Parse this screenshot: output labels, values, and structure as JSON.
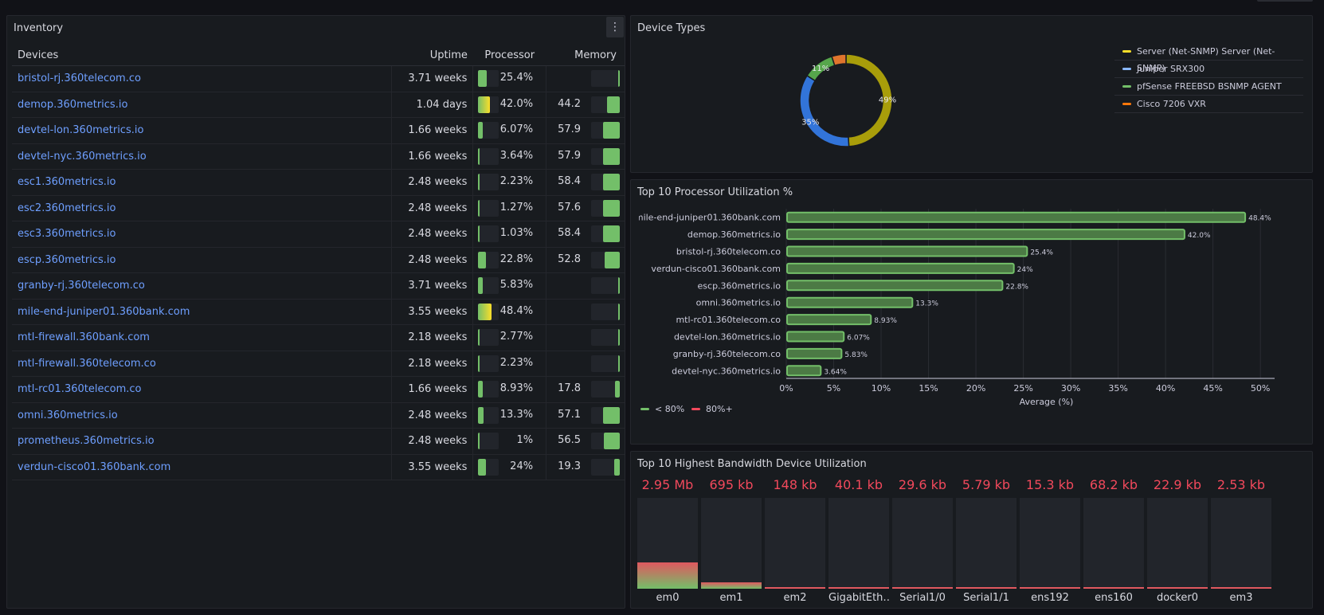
{
  "inventory": {
    "title": "Inventory",
    "menu_glyph": "⋮",
    "columns": {
      "devices": "Devices",
      "uptime": "Uptime",
      "processor": "Processor",
      "memory": "Memory"
    },
    "rows": [
      {
        "device": "bristol-rj.360telecom.co",
        "uptime": "3.71 weeks",
        "processor": "25.4%",
        "proc_pct": 25.4,
        "memory": "",
        "mem_pct": 4
      },
      {
        "device": "demop.360metrics.io",
        "uptime": "1.04 days",
        "processor": "42.0%",
        "proc_pct": 42.0,
        "memory": "44.2",
        "mem_pct": 44.2
      },
      {
        "device": "devtel-lon.360metrics.io",
        "uptime": "1.66 weeks",
        "processor": "6.07%",
        "proc_pct": 6.07,
        "memory": "57.9",
        "mem_pct": 57.9
      },
      {
        "device": "devtel-nyc.360metrics.io",
        "uptime": "1.66 weeks",
        "processor": "3.64%",
        "proc_pct": 3.64,
        "memory": "57.9",
        "mem_pct": 57.9
      },
      {
        "device": "esc1.360metrics.io",
        "uptime": "2.48 weeks",
        "processor": "2.23%",
        "proc_pct": 2.23,
        "memory": "58.4",
        "mem_pct": 58.4
      },
      {
        "device": "esc2.360metrics.io",
        "uptime": "2.48 weeks",
        "processor": "1.27%",
        "proc_pct": 1.27,
        "memory": "57.6",
        "mem_pct": 57.6
      },
      {
        "device": "esc3.360metrics.io",
        "uptime": "2.48 weeks",
        "processor": "1.03%",
        "proc_pct": 1.03,
        "memory": "58.4",
        "mem_pct": 58.4
      },
      {
        "device": "escp.360metrics.io",
        "uptime": "2.48 weeks",
        "processor": "22.8%",
        "proc_pct": 22.8,
        "memory": "52.8",
        "mem_pct": 52.8
      },
      {
        "device": "granby-rj.360telecom.co",
        "uptime": "3.71 weeks",
        "processor": "5.83%",
        "proc_pct": 5.83,
        "memory": "",
        "mem_pct": 4
      },
      {
        "device": "mile-end-juniper01.360bank.com",
        "uptime": "3.55 weeks",
        "processor": "48.4%",
        "proc_pct": 48.4,
        "memory": "",
        "mem_pct": 4
      },
      {
        "device": "mtl-firewall.360bank.com",
        "uptime": "2.18 weeks",
        "processor": "2.77%",
        "proc_pct": 2.77,
        "memory": "",
        "mem_pct": 4
      },
      {
        "device": "mtl-firewall.360telecom.co",
        "uptime": "2.18 weeks",
        "processor": "2.23%",
        "proc_pct": 2.23,
        "memory": "",
        "mem_pct": 4
      },
      {
        "device": "mtl-rc01.360telecom.co",
        "uptime": "1.66 weeks",
        "processor": "8.93%",
        "proc_pct": 8.93,
        "memory": "17.8",
        "mem_pct": 17.8
      },
      {
        "device": "omni.360metrics.io",
        "uptime": "2.48 weeks",
        "processor": "13.3%",
        "proc_pct": 13.3,
        "memory": "57.1",
        "mem_pct": 57.1
      },
      {
        "device": "prometheus.360metrics.io",
        "uptime": "2.48 weeks",
        "processor": "1%",
        "proc_pct": 1,
        "memory": "56.5",
        "mem_pct": 56.5
      },
      {
        "device": "verdun-cisco01.360bank.com",
        "uptime": "3.55 weeks",
        "processor": "24%",
        "proc_pct": 24,
        "memory": "19.3",
        "mem_pct": 19.3
      }
    ]
  },
  "device_types": {
    "title": "Device Types",
    "legend": [
      {
        "name": "Server (Net-SNMP) Server (Net-SNMP)",
        "color": "#fade2a"
      },
      {
        "name": "Juniper SRX300",
        "color": "#8ab8ff"
      },
      {
        "name": "pfSense FREEBSD BSNMP AGENT",
        "color": "#73bf69"
      },
      {
        "name": "Cisco 7206 VXR",
        "color": "#ff780a"
      }
    ],
    "chart_data": {
      "type": "pie",
      "donut": true,
      "labels": [
        "Server (Net-SNMP) Server (Net-SNMP)",
        "Juniper SRX300",
        "pfSense FREEBSD BSNMP AGENT",
        "Cisco 7206 VXR"
      ],
      "values": [
        49,
        35,
        11,
        5
      ],
      "colors": [
        "#a89d0a",
        "#3274d9",
        "#56a64b",
        "#e0752d"
      ],
      "shown_labels": [
        "49%",
        "35%",
        "11%",
        ""
      ]
    }
  },
  "processor": {
    "title": "Top 10 Processor Utilization %",
    "legend": [
      {
        "name": "< 80%",
        "color": "#73bf69"
      },
      {
        "name": "80%+",
        "color": "#f2495c"
      }
    ],
    "chart_data": {
      "type": "bar",
      "orientation": "horizontal",
      "categories": [
        "mile-end-juniper01.360bank.com",
        "demop.360metrics.io",
        "bristol-rj.360telecom.co",
        "verdun-cisco01.360bank.com",
        "escp.360metrics.io",
        "omni.360metrics.io",
        "mtl-rc01.360telecom.co",
        "devtel-lon.360metrics.io",
        "granby-rj.360telecom.co",
        "devtel-nyc.360metrics.io"
      ],
      "values": [
        48.4,
        42.0,
        25.4,
        24,
        22.8,
        13.3,
        8.93,
        6.07,
        5.83,
        3.64
      ],
      "value_labels": [
        "48.4%",
        "42.0%",
        "25.4%",
        "24%",
        "22.8%",
        "13.3%",
        "8.93%",
        "6.07%",
        "5.83%",
        "3.64%"
      ],
      "xlabel": "Average (%)",
      "xticks": [
        "0%",
        "5%",
        "10%",
        "15%",
        "20%",
        "25%",
        "30%",
        "35%",
        "40%",
        "45%",
        "50%"
      ],
      "xlim": [
        0,
        51.5
      ],
      "grid": true,
      "bar_color": "#73bf69"
    }
  },
  "bandwidth": {
    "title": "Top 10 Highest Bandwidth Device Utilization",
    "chart_data": {
      "type": "bar",
      "categories": [
        "em0",
        "em1",
        "em2",
        "GigabitEth…",
        "Serial1/0",
        "Serial1/1",
        "ens192",
        "ens160",
        "docker0",
        "em3"
      ],
      "value_labels": [
        "2.95 Mb",
        "695 kb",
        "148 kb",
        "40.1 kb",
        "29.6 kb",
        "5.79 kb",
        "15.3 kb",
        "68.2 kb",
        "22.9 kb",
        "2.53 kb"
      ],
      "fill_fraction": [
        0.29,
        0.07,
        0.01,
        0.01,
        0.01,
        0.01,
        0.01,
        0.01,
        0.01,
        0.01
      ]
    }
  }
}
